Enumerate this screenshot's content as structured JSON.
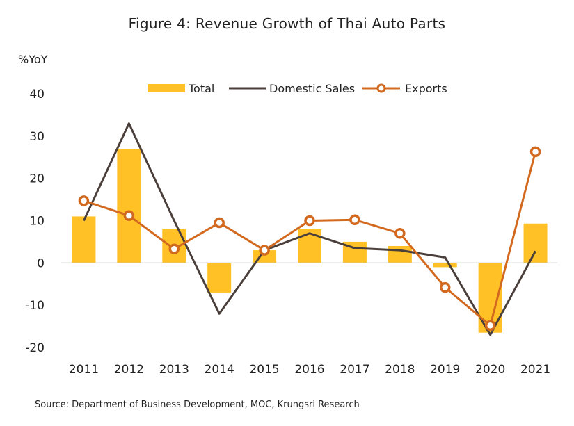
{
  "chart_data": {
    "type": "bar",
    "title": "Figure 4: Revenue Growth of Thai Auto Parts",
    "ylabel": "%YoY",
    "source": "Source: Department of Business Development, MOC, Krungsri Research",
    "categories": [
      "2011",
      "2012",
      "2013",
      "2014",
      "2015",
      "2016",
      "2017",
      "2018",
      "2019",
      "2020",
      "2021"
    ],
    "ylim": [
      -20,
      40
    ],
    "yticks": [
      40,
      30,
      20,
      10,
      0,
      -10,
      -20
    ],
    "legend_position": "top-center",
    "grid": false,
    "series": [
      {
        "name": "Total",
        "type": "bar",
        "color": "#FFC125",
        "values": [
          11,
          27,
          8,
          -7,
          3,
          8,
          5,
          4,
          -1,
          -16.5,
          9.3
        ]
      },
      {
        "name": "Domestic Sales",
        "type": "line",
        "color": "#4A3F3B",
        "values": [
          10,
          33,
          10,
          -12,
          3,
          7,
          3.5,
          3,
          1.3,
          -17,
          2.8
        ]
      },
      {
        "name": "Exports",
        "type": "line-marker",
        "color": "#D2691E",
        "values": [
          14.7,
          11.2,
          3.3,
          9.5,
          3,
          10,
          10.2,
          7,
          -5.8,
          -14.8,
          26.3
        ]
      }
    ]
  }
}
